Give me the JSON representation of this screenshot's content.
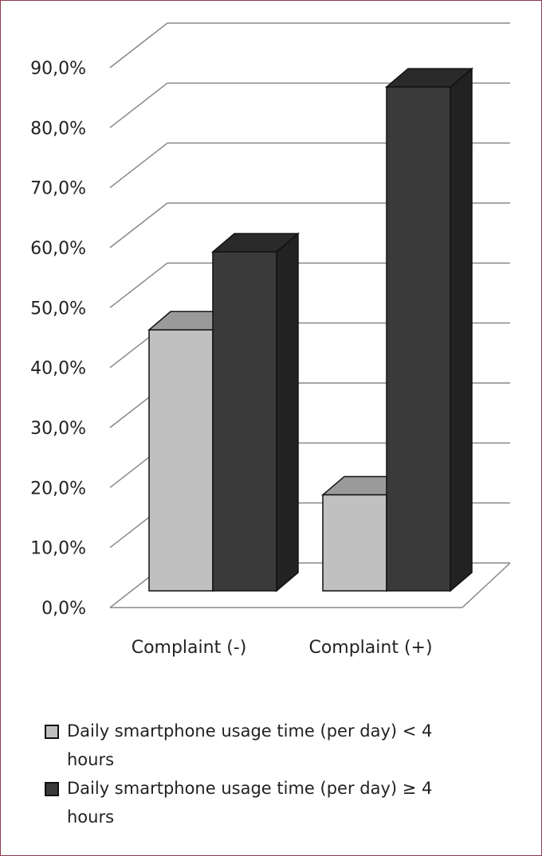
{
  "chart_data": {
    "type": "bar",
    "categories": [
      "Complaint (-)",
      "Complaint (+)"
    ],
    "series": [
      {
        "name": "Daily smartphone usage time (per day) < 4 hours",
        "values": [
          43.5,
          16.0
        ],
        "color": "#c0c0c0"
      },
      {
        "name": "Daily smartphone usage time (per day) ≥ 4 hours",
        "values": [
          56.5,
          84.0
        ],
        "color": "#3a3a3a"
      }
    ],
    "ylim": [
      0,
      90
    ],
    "yticks": [
      "0,0%",
      "10,0%",
      "20,0%",
      "30,0%",
      "40,0%",
      "50,0%",
      "60,0%",
      "70,0%",
      "80,0%",
      "90,0%"
    ],
    "grid": true,
    "legend_position": "bottom"
  },
  "legend": {
    "items": [
      {
        "line1": "Daily smartphone usage time (per day) < 4",
        "line2": "hours",
        "color": "#c0c0c0"
      },
      {
        "line1": "Daily smartphone usage time (per day) ≥ 4",
        "line2": "hours",
        "color": "#3a3a3a"
      }
    ]
  }
}
